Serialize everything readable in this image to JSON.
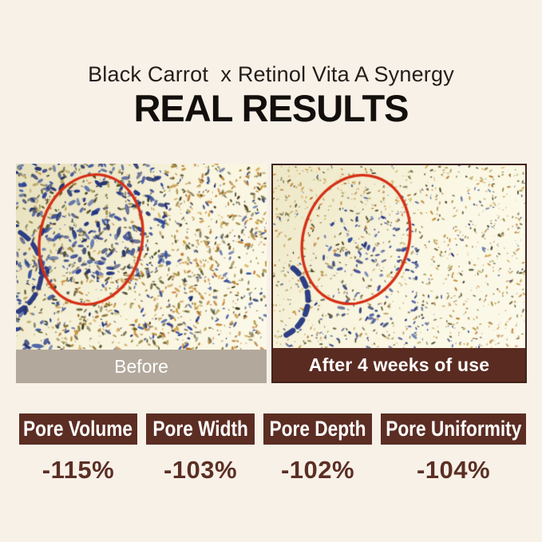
{
  "header": {
    "subtitle": "Black Carrot  x Retinol Vita A Synergy",
    "title": "REAL RESULTS"
  },
  "comparison": {
    "before": {
      "label": "Before"
    },
    "after": {
      "label": "After 4 weeks of use"
    }
  },
  "stats": [
    {
      "label": "Pore Volume",
      "value": "-115%"
    },
    {
      "label": "Pore Width",
      "value": "-103%"
    },
    {
      "label": "Pore Depth",
      "value": "-102%"
    },
    {
      "label": "Pore Uniformity",
      "value": "-104%"
    }
  ],
  "colors": {
    "page_background": "#f8f1e8",
    "accent_dark_brown": "#5a2b21",
    "stat_box_brown": "#5b2d23",
    "before_bar_taupe": "#b2a89b",
    "highlight_ellipse_red": "#d53016",
    "title_text": "#120f0c"
  }
}
